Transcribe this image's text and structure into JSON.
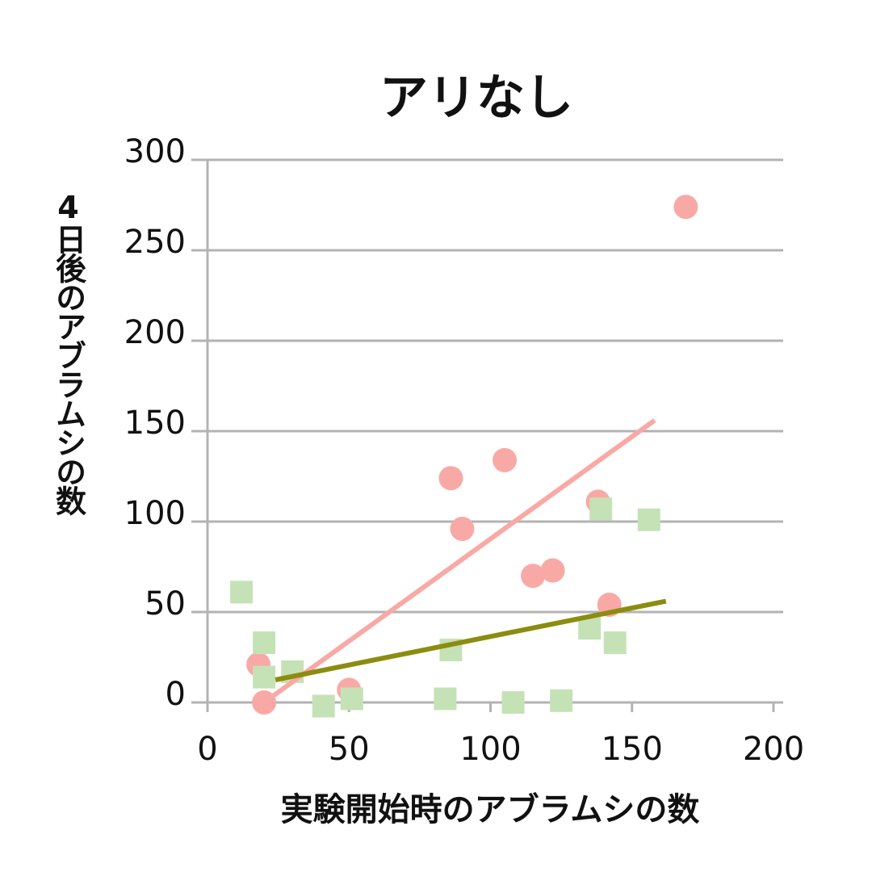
{
  "chart_data": {
    "type": "scatter",
    "title": "アリなし",
    "x_label": "実験開始時のアブラムシの数",
    "y_label": "4日後のアブラムシの数",
    "xlim": [
      0,
      200
    ],
    "ylim": [
      0,
      300
    ],
    "xticks": [
      0,
      50,
      100,
      150,
      200
    ],
    "yticks": [
      0,
      50,
      100,
      150,
      200,
      250,
      300
    ],
    "grid": true,
    "series": [
      {
        "color": "#f9a9a5",
        "marker": "circle",
        "x": [
          169,
          86,
          105,
          90,
          138,
          115,
          122,
          142,
          18,
          20,
          50
        ],
        "values": [
          274,
          124,
          134,
          96,
          111,
          70,
          73,
          54,
          21,
          0,
          7
        ]
      },
      {
        "color": "#c5e2b6",
        "marker": "square",
        "x": [
          12,
          20,
          20,
          30,
          41,
          51,
          86,
          84,
          108,
          125,
          135,
          139,
          144,
          156
        ],
        "values": [
          61,
          33,
          14,
          17,
          -2,
          2,
          29,
          2,
          0,
          1,
          41,
          107,
          33,
          101
        ]
      }
    ],
    "trendlines": [
      {
        "color": "#f9a9a5",
        "x": [
          20,
          158
        ],
        "values": [
          0,
          156
        ]
      },
      {
        "color": "#8c8c10",
        "x": [
          24,
          162
        ],
        "values": [
          12.5,
          56
        ]
      }
    ]
  }
}
